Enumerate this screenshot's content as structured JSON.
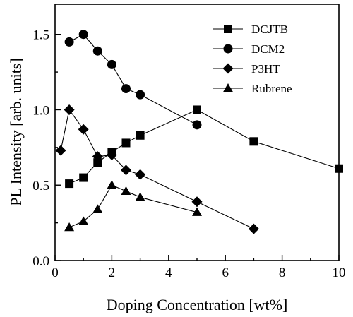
{
  "chart_data": {
    "type": "line",
    "xlabel": "Doping Concentration [wt%]",
    "ylabel": "PL Intensity [arb. units]",
    "xlim": [
      0,
      10
    ],
    "ylim": [
      0.0,
      1.7
    ],
    "xticks": [
      0,
      2,
      4,
      6,
      8,
      10
    ],
    "yticks": [
      0.0,
      0.5,
      1.0,
      1.5
    ],
    "xtick_labels": [
      "0",
      "2",
      "4",
      "6",
      "8",
      "10"
    ],
    "ytick_labels": [
      "0.0",
      "0.5",
      "1.0",
      "1.5"
    ],
    "grid": false,
    "legend_position": "top-right",
    "series": [
      {
        "name": "DCJTB",
        "marker": "square",
        "x": [
          0.5,
          1.0,
          1.5,
          2.0,
          2.5,
          3.0,
          5.0,
          7.0,
          10.0
        ],
        "y": [
          0.51,
          0.55,
          0.65,
          0.72,
          0.78,
          0.83,
          1.0,
          0.79,
          0.61
        ]
      },
      {
        "name": "DCM2",
        "marker": "circle",
        "x": [
          0.5,
          1.0,
          1.5,
          2.0,
          2.5,
          3.0,
          5.0
        ],
        "y": [
          1.45,
          1.5,
          1.39,
          1.3,
          1.14,
          1.1,
          0.9
        ]
      },
      {
        "name": "P3HT",
        "marker": "diamond",
        "x": [
          0.2,
          0.5,
          1.0,
          1.5,
          2.0,
          2.5,
          3.0,
          5.0,
          7.0
        ],
        "y": [
          0.73,
          1.0,
          0.87,
          0.69,
          0.7,
          0.6,
          0.57,
          0.39,
          0.21
        ]
      },
      {
        "name": "Rubrene",
        "marker": "triangle",
        "x": [
          0.5,
          1.0,
          1.5,
          2.0,
          2.5,
          3.0,
          5.0
        ],
        "y": [
          0.22,
          0.26,
          0.34,
          0.5,
          0.46,
          0.42,
          0.32
        ]
      }
    ]
  }
}
